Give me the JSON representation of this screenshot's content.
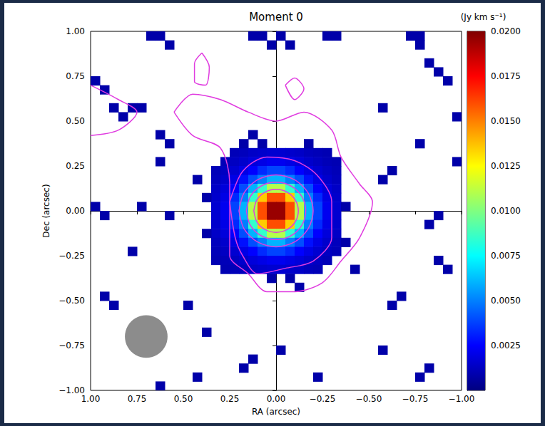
{
  "chart_data": {
    "type": "heatmap",
    "title": "Moment 0",
    "colorbar_label": "(Jy km s⁻¹)",
    "xlabel": "RA (arcsec)",
    "ylabel": "Dec (arcsec)",
    "xlim": [
      -1,
      1
    ],
    "ylim": [
      -1,
      1
    ],
    "xticks": [
      {
        "value": 1,
        "label": "1.00"
      },
      {
        "value": 0.75,
        "label": "0.75"
      },
      {
        "value": 0.5,
        "label": "0.50"
      },
      {
        "value": 0.25,
        "label": "0.25"
      },
      {
        "value": 0,
        "label": "0.00"
      },
      {
        "value": -0.25,
        "label": "−0.25"
      },
      {
        "value": -0.5,
        "label": "−0.50"
      },
      {
        "value": -0.75,
        "label": "−0.75"
      },
      {
        "value": -1,
        "label": "−1.00"
      }
    ],
    "yticks": [
      {
        "value": -1,
        "label": "−1.00"
      },
      {
        "value": -0.75,
        "label": "−0.75"
      },
      {
        "value": -0.5,
        "label": "−0.50"
      },
      {
        "value": -0.25,
        "label": "−0.25"
      },
      {
        "value": 0,
        "label": "0.00"
      },
      {
        "value": 0.25,
        "label": "0.25"
      },
      {
        "value": 0.5,
        "label": "0.50"
      },
      {
        "value": 0.75,
        "label": "0.75"
      },
      {
        "value": 1,
        "label": "1.00"
      }
    ],
    "cells": {
      "cell_size": 0.05,
      "ra": [
        0.325,
        0.275,
        0.225,
        0.175,
        0.125,
        0.075,
        0.025,
        -0.025,
        -0.075,
        -0.125,
        -0.175,
        -0.225,
        -0.275,
        -0.325
      ],
      "dec": [
        0.325,
        0.275,
        0.225,
        0.175,
        0.125,
        0.075,
        0.025,
        -0.025,
        -0.075,
        -0.125,
        -0.175,
        -0.225,
        -0.275,
        -0.325
      ],
      "values": [
        [
          null,
          null,
          0.0011,
          0.0012,
          0.0014,
          0.0015,
          0.0016,
          0.0016,
          0.0015,
          0.0014,
          0.0012,
          0.0011,
          0.001,
          null
        ],
        [
          null,
          0.0011,
          0.0013,
          0.0015,
          0.0018,
          0.002,
          0.0022,
          0.0022,
          0.002,
          0.0018,
          0.0015,
          0.0013,
          0.0011,
          0.001
        ],
        [
          0.0011,
          0.0013,
          0.0016,
          0.002,
          0.0025,
          0.0033,
          0.0038,
          0.0038,
          0.0033,
          0.0025,
          0.002,
          0.0016,
          0.0013,
          0.0011
        ],
        [
          0.0012,
          0.0015,
          0.002,
          0.0028,
          0.004,
          0.005,
          0.006,
          0.006,
          0.005,
          0.004,
          0.0028,
          0.002,
          0.0015,
          0.0012
        ],
        [
          0.0014,
          0.0018,
          0.0025,
          0.004,
          0.006,
          0.0085,
          0.011,
          0.011,
          0.0085,
          0.006,
          0.004,
          0.0025,
          0.0018,
          0.0014
        ],
        [
          0.0015,
          0.002,
          0.0033,
          0.005,
          0.0085,
          0.0135,
          0.016,
          0.016,
          0.0135,
          0.0085,
          0.005,
          0.0033,
          0.002,
          0.0015
        ],
        [
          0.0016,
          0.0022,
          0.0038,
          0.006,
          0.011,
          0.016,
          0.0195,
          0.0195,
          0.016,
          0.011,
          0.006,
          0.0038,
          0.0022,
          0.0016
        ],
        [
          0.0016,
          0.0022,
          0.0038,
          0.006,
          0.011,
          0.016,
          0.0195,
          0.0195,
          0.016,
          0.011,
          0.006,
          0.0038,
          0.0022,
          0.0016
        ],
        [
          0.0015,
          0.002,
          0.0033,
          0.005,
          0.0085,
          0.0135,
          0.016,
          0.016,
          0.0135,
          0.0085,
          0.005,
          0.0033,
          0.002,
          0.0015
        ],
        [
          0.0014,
          0.0018,
          0.0025,
          0.004,
          0.006,
          0.0085,
          0.011,
          0.011,
          0.0085,
          0.006,
          0.004,
          0.0025,
          0.0018,
          0.0014
        ],
        [
          0.0012,
          0.0015,
          0.002,
          0.0028,
          0.004,
          0.005,
          0.006,
          0.006,
          0.005,
          0.004,
          0.0028,
          0.002,
          0.0015,
          0.0012
        ],
        [
          0.0011,
          0.0013,
          0.0016,
          0.002,
          0.0025,
          0.0033,
          0.0038,
          0.0038,
          0.0033,
          0.0025,
          0.002,
          0.0016,
          0.0013,
          0.0011
        ],
        [
          0.001,
          0.0011,
          0.0013,
          0.0015,
          0.0018,
          0.002,
          0.0022,
          0.0022,
          0.002,
          0.0018,
          0.0015,
          0.0013,
          0.0011,
          null
        ],
        [
          null,
          0.001,
          0.0011,
          0.0012,
          0.0014,
          0.0015,
          0.0016,
          0.0016,
          0.0015,
          0.0014,
          0.0012,
          0.0011,
          null,
          null
        ]
      ],
      "extra": [
        [
          0.675,
          0.975,
          0.0008
        ],
        [
          0.625,
          0.975,
          0.0008
        ],
        [
          0.575,
          0.925,
          0.0008
        ],
        [
          0.125,
          0.975,
          0.0008
        ],
        [
          0.075,
          0.975,
          0.0008
        ],
        [
          -0.025,
          0.975,
          0.0008
        ],
        [
          -0.075,
          0.925,
          0.0008
        ],
        [
          0.025,
          0.925,
          0.0008
        ],
        [
          -0.275,
          0.975,
          0.0008
        ],
        [
          -0.325,
          0.975,
          0.0008
        ],
        [
          -0.725,
          0.975,
          0.0008
        ],
        [
          -0.775,
          0.975,
          0.0008
        ],
        [
          -0.775,
          0.925,
          0.0008
        ],
        [
          0.975,
          0.725,
          0.0008
        ],
        [
          0.925,
          0.675,
          0.0008
        ],
        [
          0.875,
          0.575,
          0.0008
        ],
        [
          0.825,
          0.525,
          0.0008
        ],
        [
          0.775,
          0.575,
          0.0008
        ],
        [
          0.725,
          0.575,
          0.0008
        ],
        [
          0.625,
          0.425,
          0.0008
        ],
        [
          0.575,
          0.375,
          0.0008
        ],
        [
          -0.825,
          0.825,
          0.0008
        ],
        [
          -0.875,
          0.775,
          0.0008
        ],
        [
          -0.925,
          0.725,
          0.0008
        ],
        [
          -0.575,
          0.575,
          0.0008
        ],
        [
          -0.975,
          0.525,
          0.0008
        ],
        [
          0.975,
          0.025,
          0.0008
        ],
        [
          0.925,
          -0.025,
          0.0008
        ],
        [
          0.725,
          0.025,
          0.0008
        ],
        [
          0.575,
          -0.025,
          0.0008
        ],
        [
          0.425,
          0.175,
          0.0008
        ],
        [
          0.625,
          0.275,
          0.0008
        ],
        [
          -0.575,
          0.175,
          0.0008
        ],
        [
          -0.625,
          0.225,
          0.0008
        ],
        [
          -0.875,
          -0.025,
          0.0008
        ],
        [
          -0.825,
          -0.075,
          0.0008
        ],
        [
          -0.775,
          0.375,
          0.0008
        ],
        [
          -0.975,
          0.275,
          0.0008
        ],
        [
          0.925,
          -0.475,
          0.0008
        ],
        [
          0.875,
          -0.525,
          0.0008
        ],
        [
          0.775,
          -0.225,
          0.0008
        ],
        [
          0.475,
          -0.525,
          0.0008
        ],
        [
          0.375,
          -0.675,
          0.0008
        ],
        [
          0.175,
          -0.875,
          0.0008
        ],
        [
          0.125,
          -0.825,
          0.0008
        ],
        [
          0.425,
          -0.925,
          0.0008
        ],
        [
          -0.425,
          -0.325,
          0.0008
        ],
        [
          -0.675,
          -0.475,
          0.0008
        ],
        [
          -0.625,
          -0.525,
          0.0008
        ],
        [
          -0.925,
          -0.325,
          0.0008
        ],
        [
          -0.875,
          -0.275,
          0.0008
        ],
        [
          -0.575,
          -0.775,
          0.0008
        ],
        [
          -0.825,
          -0.875,
          0.0008
        ],
        [
          -0.775,
          -0.925,
          0.0008
        ],
        [
          -0.225,
          -0.925,
          0.0008
        ],
        [
          -0.025,
          -0.775,
          0.0008
        ],
        [
          0.625,
          -0.975,
          0.0008
        ],
        [
          0.375,
          0.075,
          0.0008
        ],
        [
          0.375,
          -0.125,
          0.0008
        ],
        [
          -0.375,
          0.025,
          0.0008
        ],
        [
          -0.375,
          -0.175,
          0.0008
        ],
        [
          0.025,
          -0.375,
          0.0008
        ],
        [
          -0.075,
          -0.375,
          0.0008
        ],
        [
          -0.125,
          -0.425,
          0.0008
        ],
        [
          0.075,
          0.375,
          0.0008
        ],
        [
          -0.175,
          0.375,
          0.0008
        ],
        [
          0.125,
          0.425,
          0.0008
        ],
        [
          0.175,
          0.375,
          0.0008
        ]
      ]
    },
    "colorbar": {
      "range": [
        0,
        0.02
      ],
      "ticks": [
        {
          "value": 0.0025,
          "label": "0.0025"
        },
        {
          "value": 0.005,
          "label": "0.0050"
        },
        {
          "value": 0.0075,
          "label": "0.0075"
        },
        {
          "value": 0.01,
          "label": "0.0100"
        },
        {
          "value": 0.0125,
          "label": "0.0125"
        },
        {
          "value": 0.015,
          "label": "0.0150"
        },
        {
          "value": 0.0175,
          "label": "0.0175"
        },
        {
          "value": 0.02,
          "label": "0.0200"
        }
      ]
    },
    "contours": {
      "color": "#e03ce0",
      "paths": [
        [
          [
            0.55,
            0.55
          ],
          [
            0.45,
            0.42
          ],
          [
            0.3,
            0.35
          ],
          [
            0.25,
            0.15
          ],
          [
            0.25,
            -0.05
          ],
          [
            0.25,
            -0.25
          ],
          [
            0.15,
            -0.35
          ],
          [
            0.05,
            -0.45
          ],
          [
            -0.1,
            -0.45
          ],
          [
            -0.25,
            -0.4
          ],
          [
            -0.35,
            -0.28
          ],
          [
            -0.45,
            -0.15
          ],
          [
            -0.52,
            0.05
          ],
          [
            -0.45,
            0.15
          ],
          [
            -0.35,
            0.3
          ],
          [
            -0.3,
            0.45
          ],
          [
            -0.15,
            0.55
          ],
          [
            0.0,
            0.5
          ],
          [
            0.15,
            0.55
          ],
          [
            0.3,
            0.62
          ],
          [
            0.45,
            0.65
          ],
          [
            0.55,
            0.55
          ]
        ],
        [
          [
            1.0,
            0.7
          ],
          [
            0.85,
            0.62
          ],
          [
            0.75,
            0.55
          ],
          [
            0.85,
            0.45
          ],
          [
            1.0,
            0.42
          ]
        ],
        [
          [
            0.4,
            0.88
          ],
          [
            0.36,
            0.8
          ],
          [
            0.38,
            0.7
          ],
          [
            0.44,
            0.72
          ],
          [
            0.44,
            0.82
          ],
          [
            0.4,
            0.88
          ]
        ],
        [
          [
            -0.05,
            0.7
          ],
          [
            -0.1,
            0.62
          ],
          [
            -0.15,
            0.68
          ],
          [
            -0.1,
            0.74
          ],
          [
            -0.05,
            0.7
          ]
        ],
        [
          [
            0.25,
            0.05
          ],
          [
            0.22,
            -0.15
          ],
          [
            0.18,
            -0.25
          ],
          [
            0.1,
            -0.35
          ],
          [
            -0.05,
            -0.32
          ],
          [
            -0.2,
            -0.28
          ],
          [
            -0.3,
            -0.15
          ],
          [
            -0.3,
            0.05
          ],
          [
            -0.22,
            0.2
          ],
          [
            -0.1,
            0.28
          ],
          [
            0.05,
            0.3
          ],
          [
            0.18,
            0.22
          ],
          [
            0.25,
            0.05
          ]
        ],
        [
          [
            0.2,
            0
          ],
          [
            0.173,
            0.1
          ],
          [
            0.1,
            0.173
          ],
          [
            0,
            0.2
          ],
          [
            -0.1,
            0.173
          ],
          [
            -0.173,
            0.1
          ],
          [
            -0.2,
            0
          ],
          [
            -0.173,
            -0.1
          ],
          [
            -0.1,
            -0.173
          ],
          [
            0,
            -0.2
          ],
          [
            0.1,
            -0.173
          ],
          [
            0.173,
            -0.1
          ],
          [
            0.2,
            0
          ]
        ],
        [
          [
            0.16,
            0
          ],
          [
            0.139,
            0.08
          ],
          [
            0.08,
            0.139
          ],
          [
            0,
            0.16
          ],
          [
            -0.08,
            0.139
          ],
          [
            -0.139,
            0.08
          ],
          [
            -0.16,
            0
          ],
          [
            -0.139,
            -0.08
          ],
          [
            -0.08,
            -0.139
          ],
          [
            0,
            -0.16
          ],
          [
            0.08,
            -0.139
          ],
          [
            0.139,
            -0.08
          ],
          [
            0.16,
            0
          ]
        ],
        [
          [
            0.12,
            0
          ],
          [
            0.104,
            0.06
          ],
          [
            0.06,
            0.104
          ],
          [
            0,
            0.12
          ],
          [
            -0.06,
            0.104
          ],
          [
            -0.104,
            0.06
          ],
          [
            -0.12,
            0
          ],
          [
            -0.104,
            -0.06
          ],
          [
            -0.06,
            -0.104
          ],
          [
            0,
            -0.12
          ],
          [
            0.06,
            -0.104
          ],
          [
            0.104,
            -0.06
          ],
          [
            0.12,
            0
          ]
        ]
      ]
    },
    "beam": {
      "ra": 0.7,
      "dec": -0.7,
      "diameter": 0.23,
      "color": "#8c8c8c"
    }
  }
}
